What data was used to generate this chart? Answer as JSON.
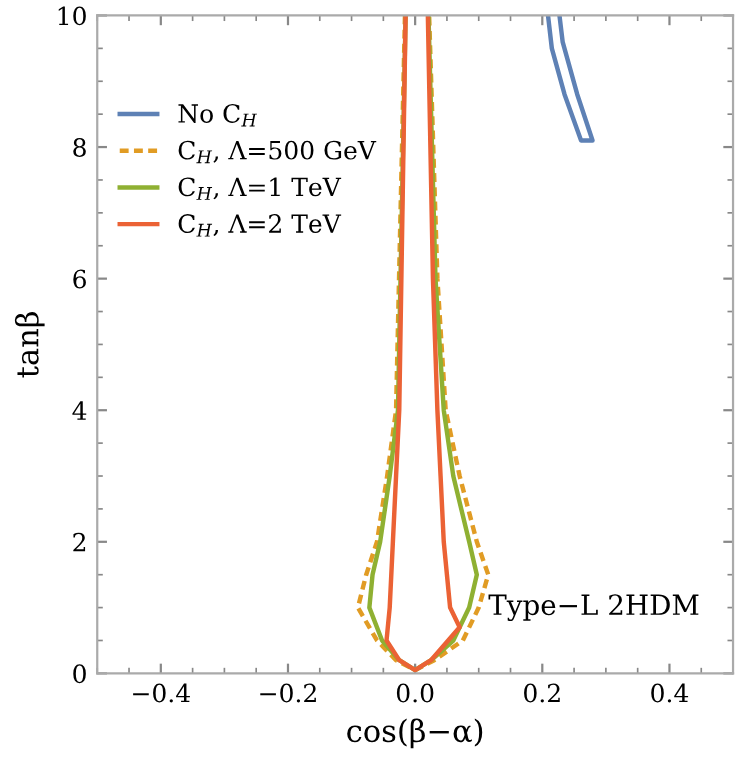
{
  "chart_data": {
    "type": "line",
    "xlabel": "cos(β−α)",
    "ylabel": "tanβ",
    "xlim": [
      -0.5,
      0.5
    ],
    "ylim": [
      0,
      10
    ],
    "xticks": [
      {
        "value": -0.4,
        "label": "−0.4"
      },
      {
        "value": -0.2,
        "label": "−0.2"
      },
      {
        "value": 0,
        "label": "0.0"
      },
      {
        "value": 0.2,
        "label": "0.2"
      },
      {
        "value": 0.4,
        "label": "0.4"
      }
    ],
    "yticks": [
      0,
      2,
      4,
      6,
      8,
      10
    ],
    "grid": false,
    "legend": "top left",
    "marker": "none",
    "annotations": [
      "Type−L 2HDM"
    ],
    "series": [
      {
        "name": "No C$_{H}$",
        "color": "#5e81b5",
        "line_style": "solid",
        "x": [
          0.209,
          0.215,
          0.235,
          0.261,
          0.279,
          0.255,
          0.232,
          0.227
        ],
        "values": [
          10,
          9.5,
          8.8,
          8.1,
          8.1,
          8.8,
          9.6,
          10
        ]
      },
      {
        "name": "C$_{H}$, Λ=500 GeV",
        "color": "#e19c24",
        "line_style": "dashed",
        "x": [
          -0.016,
          -0.03,
          -0.044,
          -0.06,
          -0.077,
          -0.09,
          -0.06,
          -0.03,
          0,
          0.03,
          0.075,
          0.1,
          0.115,
          0.097,
          0.07,
          0.048,
          0.035,
          0.022
        ],
        "values": [
          10,
          4,
          3,
          2,
          1.5,
          1,
          0.5,
          0.2,
          0.05,
          0.2,
          0.5,
          1,
          1.5,
          2,
          3,
          4,
          6,
          10
        ]
      },
      {
        "name": "C$_{H}$, Λ=1 TeV",
        "color": "#8fb032",
        "line_style": "solid",
        "x": [
          -0.015,
          -0.027,
          -0.04,
          -0.055,
          -0.067,
          -0.072,
          -0.052,
          -0.025,
          0,
          0.025,
          0.06,
          0.085,
          0.097,
          0.085,
          0.06,
          0.045,
          0.032,
          0.021
        ],
        "values": [
          10,
          4,
          3,
          2,
          1.5,
          1,
          0.5,
          0.2,
          0.05,
          0.2,
          0.5,
          1,
          1.5,
          2,
          3,
          4,
          6,
          10
        ]
      },
      {
        "name": "C$_{H}$, Λ=2 TeV",
        "color": "#eb6235",
        "line_style": "solid",
        "x": [
          -0.015,
          -0.025,
          -0.03,
          -0.035,
          -0.04,
          -0.045,
          -0.025,
          0,
          0.025,
          0.07,
          0.055,
          0.045,
          0.04,
          0.035,
          0.028,
          0.02
        ],
        "values": [
          10,
          4,
          3,
          2,
          1,
          0.5,
          0.2,
          0.05,
          0.2,
          0.7,
          1,
          2,
          3,
          4,
          6,
          10
        ]
      }
    ]
  }
}
